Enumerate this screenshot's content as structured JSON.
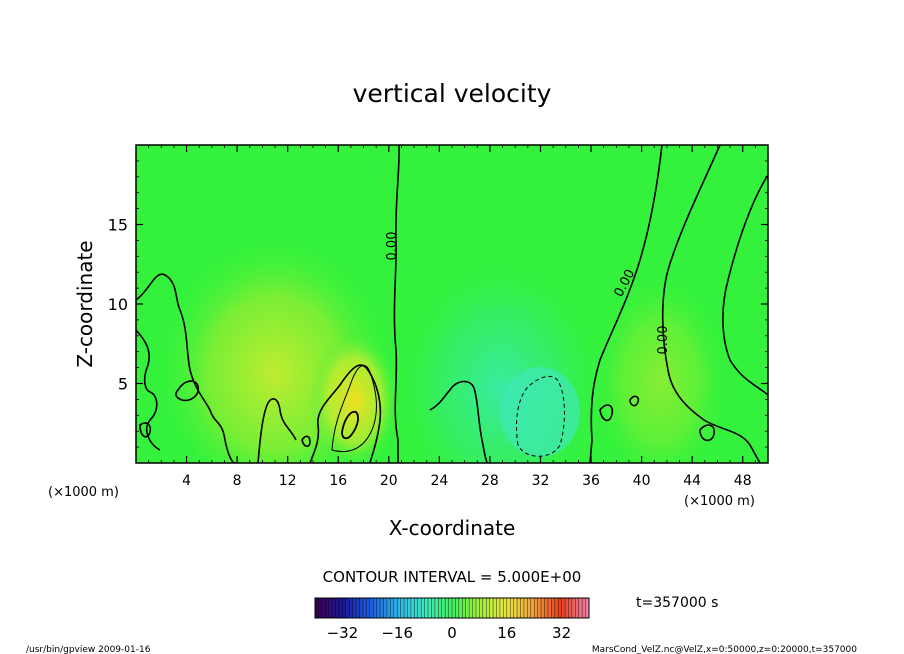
{
  "chart_data": {
    "type": "contour",
    "title": "vertical velocity",
    "xlabel": "X-coordinate",
    "ylabel": "Z-coordinate",
    "x_unit_left": "(×1000 m)",
    "x_unit_right": "(×1000 m)",
    "xlim": [
      0,
      50
    ],
    "ylim": [
      0,
      20
    ],
    "x_ticks": [
      4,
      8,
      12,
      16,
      20,
      24,
      28,
      32,
      36,
      40,
      44,
      48
    ],
    "y_ticks": [
      5,
      10,
      15
    ],
    "contour_interval": "CONTOUR INTERVAL = 5.000E+00",
    "time_label": "t=357000 s",
    "contour_labels": [
      "0.00",
      "0.00",
      "0.00"
    ],
    "colorbar": {
      "range": [
        -40,
        40
      ],
      "ticks": [
        -32,
        -16,
        0,
        16,
        32
      ],
      "colors": [
        "#3a0050",
        "#1a1aa0",
        "#1e5fe0",
        "#30b4e8",
        "#40e8c0",
        "#40f060",
        "#a0f040",
        "#e8e840",
        "#f0a040",
        "#e84020",
        "#f080a0"
      ]
    },
    "field_colors": {
      "background": "#34f23c",
      "positive": "#c8ec30",
      "negative": "#38eaa8"
    }
  },
  "footer": {
    "left": "/usr/bin/gpview   2009-01-16",
    "right": "MarsCond_VelZ.nc@VelZ,x=0:50000,z=0:20000,t=357000"
  }
}
